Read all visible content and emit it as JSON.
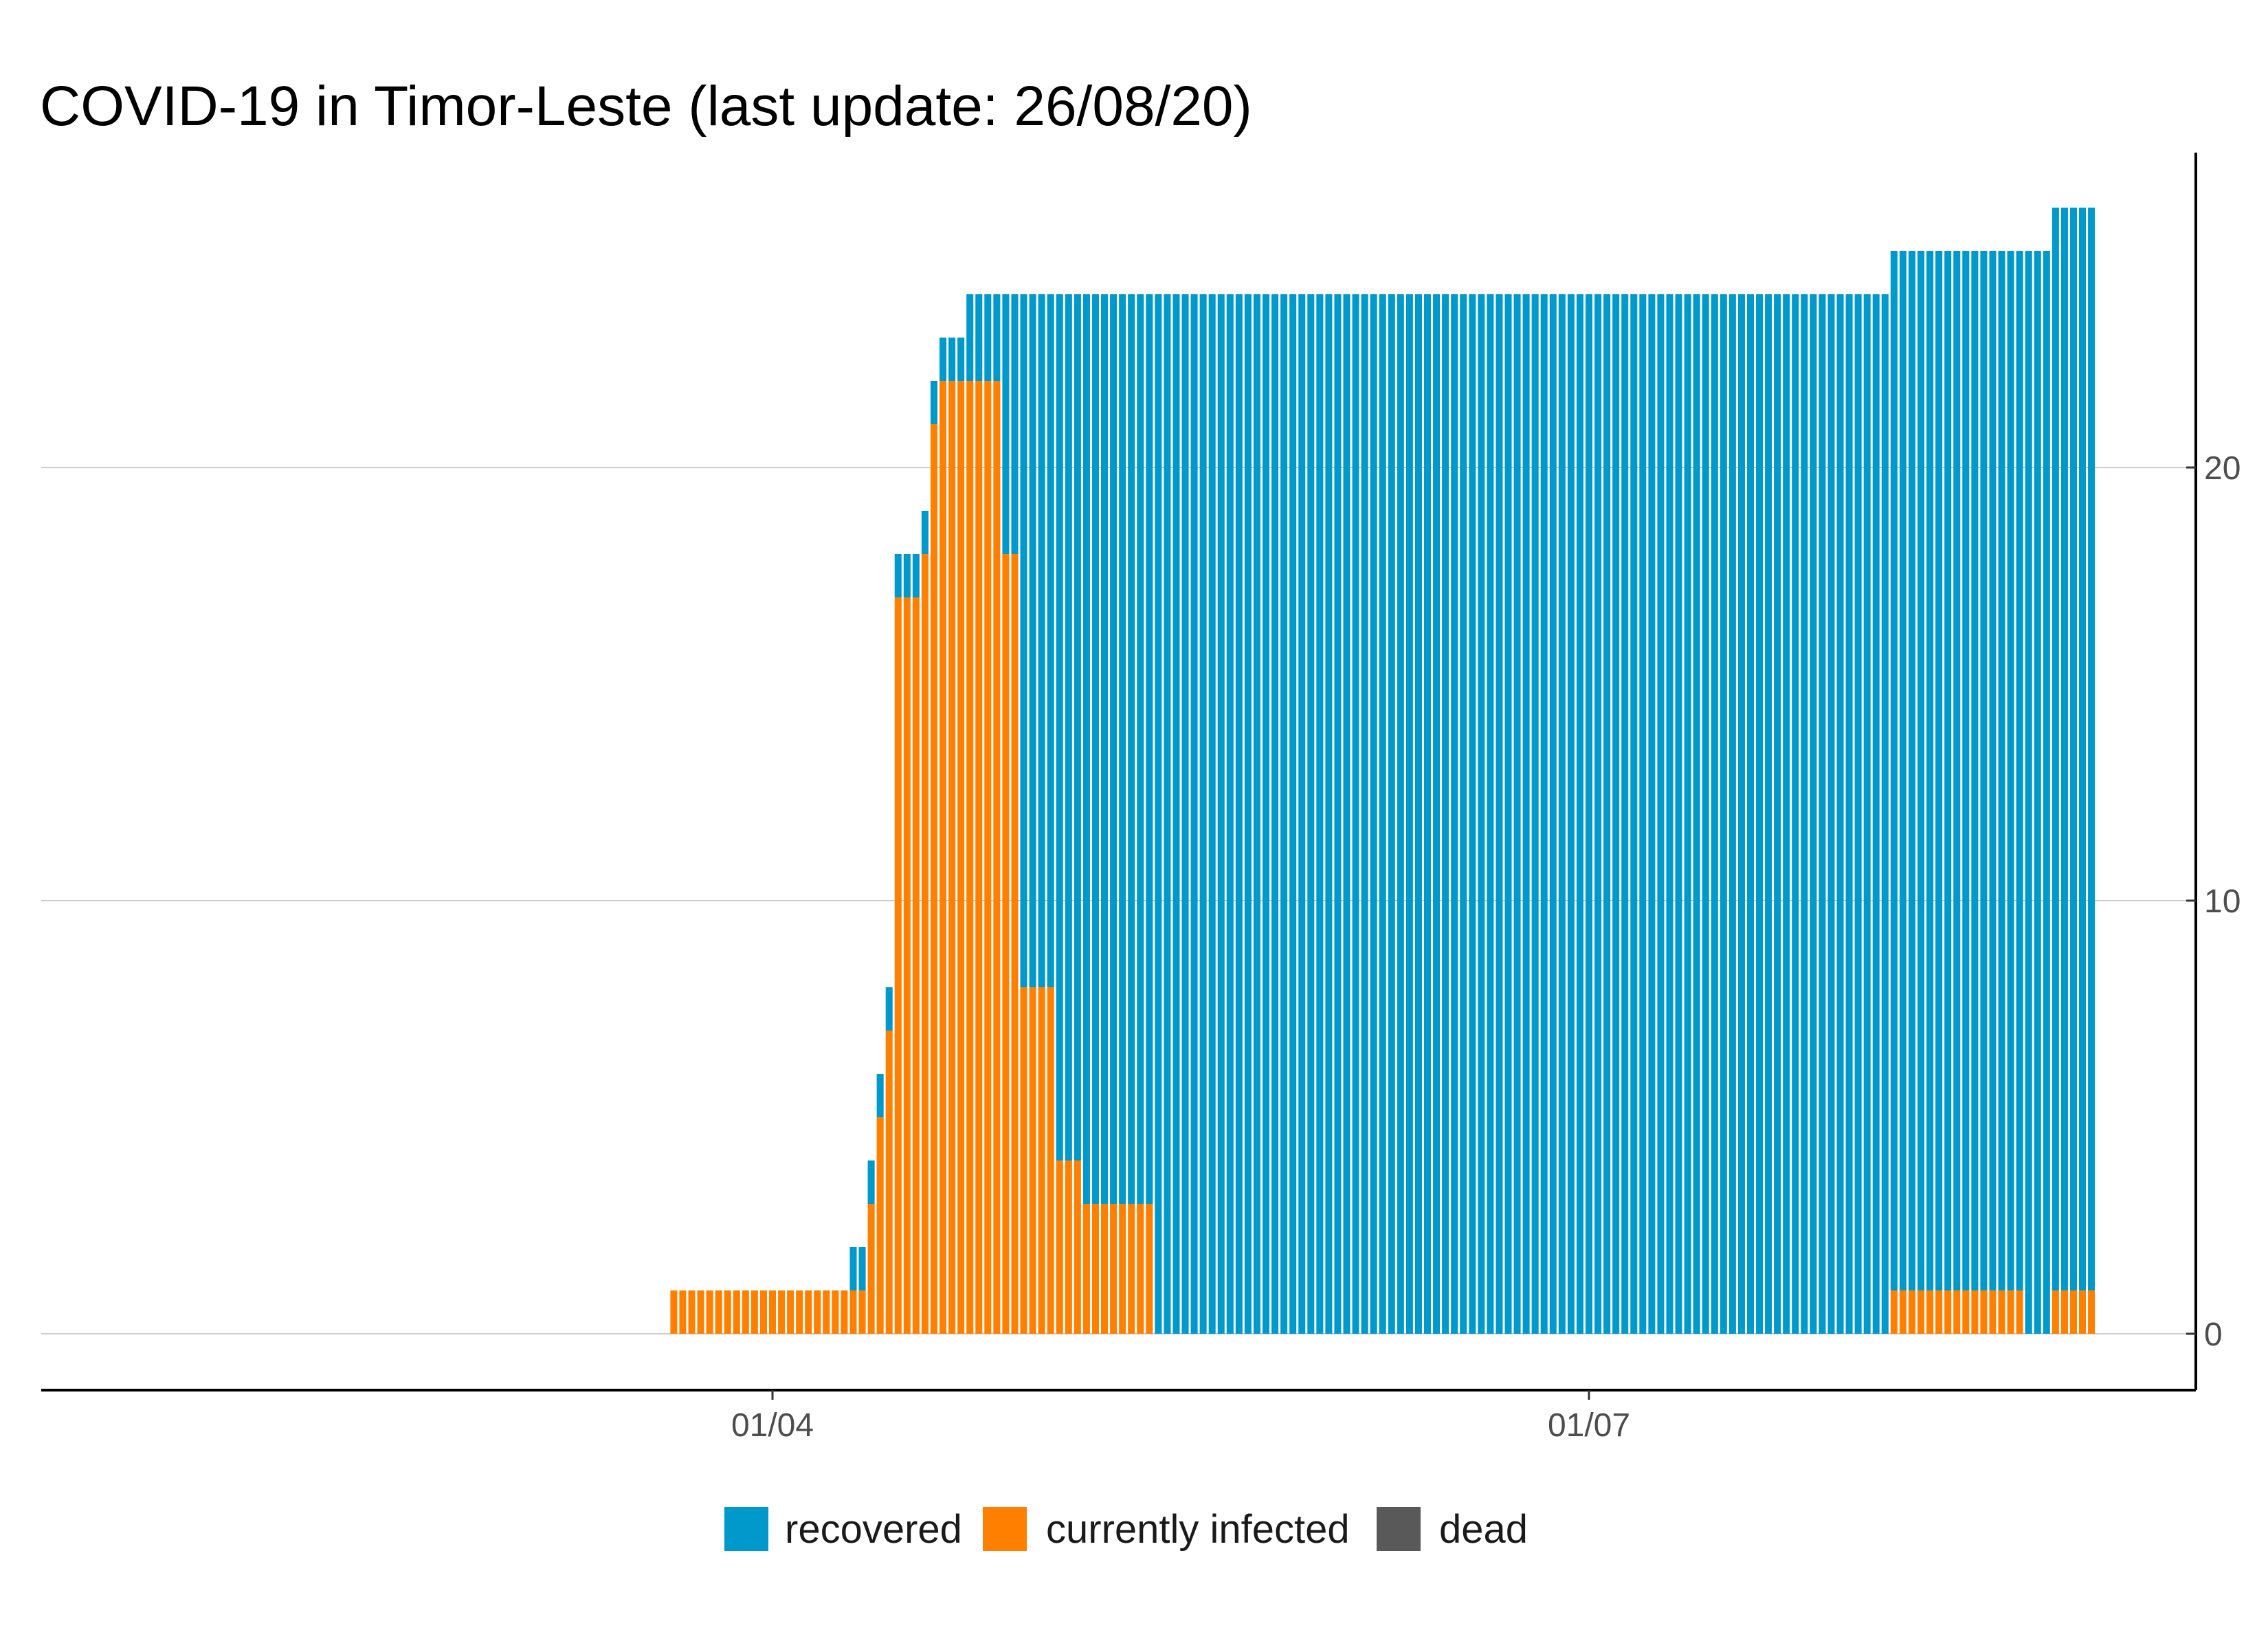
{
  "chart_data": {
    "type": "bar",
    "stacked": true,
    "title": "COVID-19 in Timor-Leste (last update: 26/08/20)",
    "xlabel": "",
    "ylabel": "",
    "x_axis": {
      "start_date": "2020-02-06",
      "end_date": "2020-08-26",
      "ticks": [
        {
          "date": "2020-04-01",
          "label": "01/04"
        },
        {
          "date": "2020-07-01",
          "label": "01/07"
        }
      ]
    },
    "y_axis": {
      "position": "right",
      "ylim": [
        0,
        27
      ],
      "ticks": [
        0,
        10,
        20
      ]
    },
    "grid": "horizontal major",
    "legend_position": "bottom",
    "series": [
      {
        "name": "recovered",
        "color": "#0099cc"
      },
      {
        "name": "currently infected",
        "color": "#ff8000"
      },
      {
        "name": "dead",
        "color": "#595959"
      }
    ],
    "stack_order_bottom_to_top": [
      "dead",
      "currently infected",
      "recovered"
    ],
    "segments": [
      {
        "from": "2020-03-21",
        "to": "2020-04-09",
        "recovered": 0,
        "currently_infected": 1,
        "dead": 0
      },
      {
        "from": "2020-04-10",
        "to": "2020-04-11",
        "recovered": 1,
        "currently_infected": 1,
        "dead": 0
      },
      {
        "from": "2020-04-12",
        "to": "2020-04-12",
        "recovered": 1,
        "currently_infected": 3,
        "dead": 0
      },
      {
        "from": "2020-04-13",
        "to": "2020-04-13",
        "recovered": 1,
        "currently_infected": 5,
        "dead": 0
      },
      {
        "from": "2020-04-14",
        "to": "2020-04-14",
        "recovered": 1,
        "currently_infected": 7,
        "dead": 0
      },
      {
        "from": "2020-04-15",
        "to": "2020-04-17",
        "recovered": 1,
        "currently_infected": 17,
        "dead": 0
      },
      {
        "from": "2020-04-18",
        "to": "2020-04-18",
        "recovered": 1,
        "currently_infected": 18,
        "dead": 0
      },
      {
        "from": "2020-04-19",
        "to": "2020-04-19",
        "recovered": 1,
        "currently_infected": 21,
        "dead": 0
      },
      {
        "from": "2020-04-20",
        "to": "2020-04-22",
        "recovered": 1,
        "currently_infected": 22,
        "dead": 0
      },
      {
        "from": "2020-04-23",
        "to": "2020-04-26",
        "recovered": 2,
        "currently_infected": 22,
        "dead": 0
      },
      {
        "from": "2020-04-27",
        "to": "2020-04-28",
        "recovered": 6,
        "currently_infected": 18,
        "dead": 0
      },
      {
        "from": "2020-04-29",
        "to": "2020-05-02",
        "recovered": 16,
        "currently_infected": 8,
        "dead": 0
      },
      {
        "from": "2020-05-03",
        "to": "2020-05-05",
        "recovered": 20,
        "currently_infected": 4,
        "dead": 0
      },
      {
        "from": "2020-05-06",
        "to": "2020-05-13",
        "recovered": 21,
        "currently_infected": 3,
        "dead": 0
      },
      {
        "from": "2020-05-14",
        "to": "2020-08-03",
        "recovered": 24,
        "currently_infected": 0,
        "dead": 0
      },
      {
        "from": "2020-08-04",
        "to": "2020-08-18",
        "recovered": 24,
        "currently_infected": 1,
        "dead": 0
      },
      {
        "from": "2020-08-19",
        "to": "2020-08-21",
        "recovered": 25,
        "currently_infected": 0,
        "dead": 0
      },
      {
        "from": "2020-08-22",
        "to": "2020-08-26",
        "recovered": 25,
        "currently_infected": 1,
        "dead": 0
      }
    ]
  }
}
